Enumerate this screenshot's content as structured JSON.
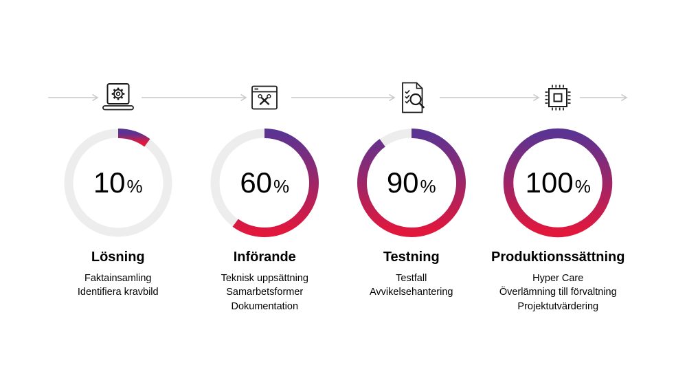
{
  "page": {
    "background": "#ffffff"
  },
  "colors": {
    "gradient_start": "#5b3392",
    "gradient_end": "#e2173c",
    "track": "#ededed",
    "arrow": "#c9c9c9",
    "icon": "#1a1a1a",
    "text": "#000000"
  },
  "chart_data": {
    "type": "donut",
    "charts": [
      {
        "label": "Lösning",
        "value": 10,
        "max": 100,
        "unit": "%"
      },
      {
        "label": "Införande",
        "value": 60,
        "max": 100,
        "unit": "%"
      },
      {
        "label": "Testning",
        "value": 90,
        "max": 100,
        "unit": "%"
      },
      {
        "label": "Produktionssättning",
        "value": 100,
        "max": 100,
        "unit": "%"
      }
    ],
    "start_angle_deg": 0,
    "direction": "clockwise",
    "ring_gradient": [
      "#5b3392",
      "#e2173c"
    ],
    "track_color": "#ededed"
  },
  "stages": [
    {
      "icon": "laptop-gear-icon",
      "percent": 10,
      "percent_text": "10",
      "percent_sign": "%",
      "title": "Lösning",
      "items": [
        "Faktainsamling",
        "Identifiera kravbild"
      ]
    },
    {
      "icon": "browser-tools-icon",
      "percent": 60,
      "percent_text": "60",
      "percent_sign": "%",
      "title": "Införande",
      "items": [
        "Teknisk uppsättning",
        "Samarbetsformer",
        "Dokumentation"
      ]
    },
    {
      "icon": "document-review-icon",
      "percent": 90,
      "percent_text": "90",
      "percent_sign": "%",
      "title": "Testning",
      "items": [
        "Testfall",
        "Avvikelsehantering"
      ]
    },
    {
      "icon": "cpu-chip-icon",
      "percent": 100,
      "percent_text": "100",
      "percent_sign": "%",
      "title": "Produktionssättning",
      "items": [
        "Hyper Care",
        "Överlämning till förvaltning",
        "Projektutvärdering"
      ]
    }
  ]
}
